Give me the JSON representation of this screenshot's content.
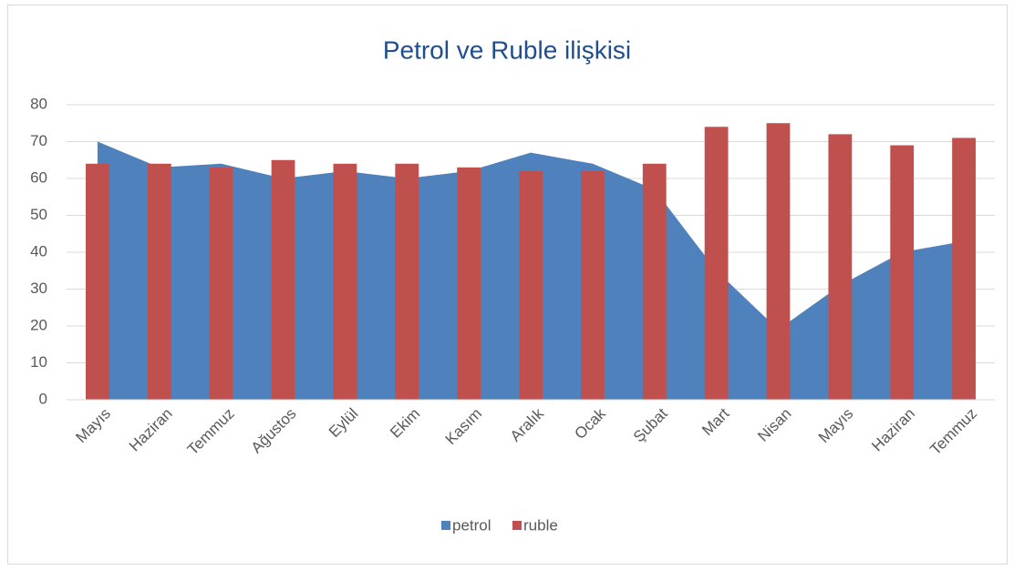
{
  "chart_data": {
    "type": "combo",
    "title": "Petrol ve Ruble ilişkisi",
    "categories": [
      "Mayıs",
      "Haziran",
      "Temmuz",
      "Ağustos",
      "Eylül",
      "Ekim",
      "Kasım",
      "Aralık",
      "Ocak",
      "Şubat",
      "Mart",
      "Nisan",
      "Mayıs",
      "Haziran",
      "Temmuz"
    ],
    "series": [
      {
        "name": "petrol",
        "type": "area",
        "color": "#4f81bd",
        "values": [
          70,
          63,
          64,
          60,
          62,
          60,
          62,
          67,
          64,
          57,
          35,
          19,
          31,
          40,
          43
        ]
      },
      {
        "name": "ruble",
        "type": "bar",
        "color": "#c0504d",
        "values": [
          64,
          64,
          63,
          65,
          64,
          64,
          63,
          62,
          62,
          64,
          74,
          75,
          72,
          69,
          71
        ]
      }
    ],
    "ylim": [
      0,
      80
    ],
    "yticks": [
      0,
      10,
      20,
      30,
      40,
      50,
      60,
      70,
      80
    ],
    "grid": true,
    "legend": "bottom"
  }
}
